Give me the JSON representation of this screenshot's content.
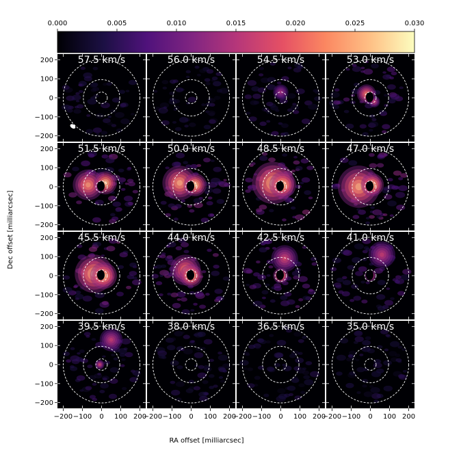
{
  "chart_data": {
    "type": "heatmap",
    "title": "",
    "colorbar": {
      "min": 0.0,
      "max": 0.03,
      "ticks": [
        "0.000",
        "0.005",
        "0.010",
        "0.015",
        "0.020",
        "0.025",
        "0.030"
      ],
      "colormap": "magma",
      "orientation": "horizontal",
      "placement": "top"
    },
    "xlabel": "RA offset [milliarcsec]",
    "ylabel": "Dec offset [milliarcsec]",
    "xlim": [
      -230,
      230
    ],
    "ylim": [
      -230,
      230
    ],
    "xticks": [
      "−200",
      "−100",
      "0",
      "100",
      "200"
    ],
    "yticks": [
      "200",
      "100",
      "0",
      "−100",
      "−200"
    ],
    "xtick_values": [
      -200,
      -100,
      0,
      100,
      200
    ],
    "ytick_values": [
      200,
      100,
      0,
      -100,
      -200
    ],
    "rings_mas": [
      30,
      95,
      200
    ],
    "beam": {
      "x": -150,
      "y": -150,
      "major": 20,
      "minor": 13,
      "panel_index": 0
    },
    "channels": [
      {
        "label": "57.5 km/s",
        "velocity": 57.5,
        "level": 0.1,
        "clumps": []
      },
      {
        "label": "56.0 km/s",
        "velocity": 56.0,
        "level": 0.08,
        "clumps": []
      },
      {
        "label": "54.5 km/s",
        "velocity": 54.5,
        "level": 0.25,
        "clumps": [
          {
            "x": 0,
            "y": 30,
            "r": 40,
            "v": 0.45
          }
        ]
      },
      {
        "label": "53.0 km/s",
        "velocity": 53.0,
        "level": 0.55,
        "clumps": [
          {
            "x": -20,
            "y": 20,
            "r": 50,
            "v": 0.8
          },
          {
            "x": 20,
            "y": -20,
            "r": 30,
            "v": 0.6
          }
        ]
      },
      {
        "label": "51.5 km/s",
        "velocity": 51.5,
        "level": 0.8,
        "clumps": [
          {
            "x": -70,
            "y": 10,
            "r": 80,
            "v": 0.85
          },
          {
            "x": 20,
            "y": 20,
            "r": 60,
            "v": 1.0
          }
        ]
      },
      {
        "label": "50.0 km/s",
        "velocity": 50.0,
        "level": 0.85,
        "clumps": [
          {
            "x": -60,
            "y": 20,
            "r": 90,
            "v": 0.9
          },
          {
            "x": 20,
            "y": 10,
            "r": 60,
            "v": 1.0
          }
        ]
      },
      {
        "label": "48.5 km/s",
        "velocity": 48.5,
        "level": 0.95,
        "clumps": [
          {
            "x": -40,
            "y": 20,
            "r": 110,
            "v": 0.95
          },
          {
            "x": 10,
            "y": 10,
            "r": 70,
            "v": 1.0
          }
        ]
      },
      {
        "label": "47.0 km/s",
        "velocity": 47.0,
        "level": 0.9,
        "clumps": [
          {
            "x": -60,
            "y": 0,
            "r": 110,
            "v": 0.9
          },
          {
            "x": 10,
            "y": 10,
            "r": 60,
            "v": 1.0
          }
        ]
      },
      {
        "label": "45.5 km/s",
        "velocity": 45.5,
        "level": 0.9,
        "clumps": [
          {
            "x": -40,
            "y": 10,
            "r": 100,
            "v": 0.95
          },
          {
            "x": 10,
            "y": 0,
            "r": 70,
            "v": 1.0
          }
        ]
      },
      {
        "label": "44.0 km/s",
        "velocity": 44.0,
        "level": 0.75,
        "clumps": [
          {
            "x": -30,
            "y": 30,
            "r": 80,
            "v": 0.8
          },
          {
            "x": 0,
            "y": 0,
            "r": 60,
            "v": 1.0
          }
        ]
      },
      {
        "label": "42.5 km/s",
        "velocity": 42.5,
        "level": 0.6,
        "clumps": [
          {
            "x": 20,
            "y": 90,
            "r": 70,
            "v": 0.6
          },
          {
            "x": 0,
            "y": 0,
            "r": 40,
            "v": 0.95
          }
        ]
      },
      {
        "label": "41.0 km/s",
        "velocity": 41.0,
        "level": 0.45,
        "clumps": [
          {
            "x": 60,
            "y": 110,
            "r": 70,
            "v": 0.55
          },
          {
            "x": 0,
            "y": 0,
            "r": 30,
            "v": 0.8
          }
        ]
      },
      {
        "label": "39.5 km/s",
        "velocity": 39.5,
        "level": 0.3,
        "clumps": [
          {
            "x": 50,
            "y": 130,
            "r": 60,
            "v": 0.55
          },
          {
            "x": -10,
            "y": 0,
            "r": 25,
            "v": 0.6
          }
        ]
      },
      {
        "label": "38.0 km/s",
        "velocity": 38.0,
        "level": 0.12,
        "clumps": []
      },
      {
        "label": "36.5 km/s",
        "velocity": 36.5,
        "level": 0.06,
        "clumps": []
      },
      {
        "label": "35.0 km/s",
        "velocity": 35.0,
        "level": 0.06,
        "clumps": []
      }
    ]
  }
}
